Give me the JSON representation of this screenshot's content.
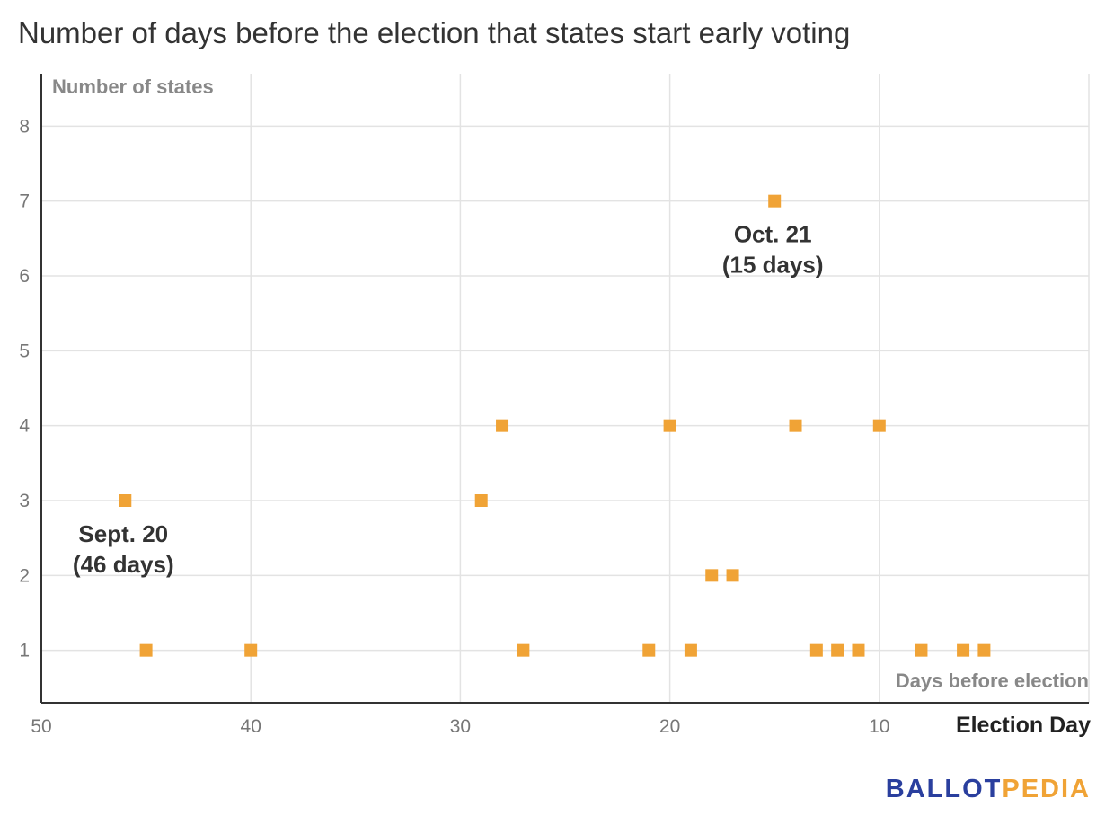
{
  "chart_data": {
    "type": "scatter",
    "title": "Number of days before the election that states start early voting",
    "ylabel": "Number of states",
    "xlabel": "Days before election",
    "x_end_label": "Election Day",
    "xlim": [
      50,
      0
    ],
    "ylim": [
      0.3,
      8.7
    ],
    "x_ticks": [
      50,
      40,
      30,
      20,
      10
    ],
    "y_ticks": [
      1,
      2,
      3,
      4,
      5,
      6,
      7,
      8
    ],
    "grid": true,
    "marker_color": "#f0a336",
    "points": [
      {
        "x": 46,
        "y": 3
      },
      {
        "x": 45,
        "y": 1
      },
      {
        "x": 40,
        "y": 1
      },
      {
        "x": 29,
        "y": 3
      },
      {
        "x": 28,
        "y": 4
      },
      {
        "x": 27,
        "y": 1
      },
      {
        "x": 21,
        "y": 1
      },
      {
        "x": 20,
        "y": 4
      },
      {
        "x": 19,
        "y": 1
      },
      {
        "x": 18,
        "y": 2
      },
      {
        "x": 17,
        "y": 2
      },
      {
        "x": 15,
        "y": 7
      },
      {
        "x": 14,
        "y": 4
      },
      {
        "x": 13,
        "y": 1
      },
      {
        "x": 12,
        "y": 1
      },
      {
        "x": 11,
        "y": 1
      },
      {
        "x": 10,
        "y": 4
      },
      {
        "x": 8,
        "y": 1
      },
      {
        "x": 6,
        "y": 1
      },
      {
        "x": 5,
        "y": 1
      }
    ],
    "annotations": [
      {
        "x": 46,
        "y": 3,
        "lines": [
          "Sept. 20",
          "(46 days)"
        ]
      },
      {
        "x": 15,
        "y": 7,
        "lines": [
          "Oct. 21",
          "(15 days)"
        ]
      }
    ]
  },
  "brand": {
    "part1": "BALLOT",
    "part2": "PEDIA"
  }
}
